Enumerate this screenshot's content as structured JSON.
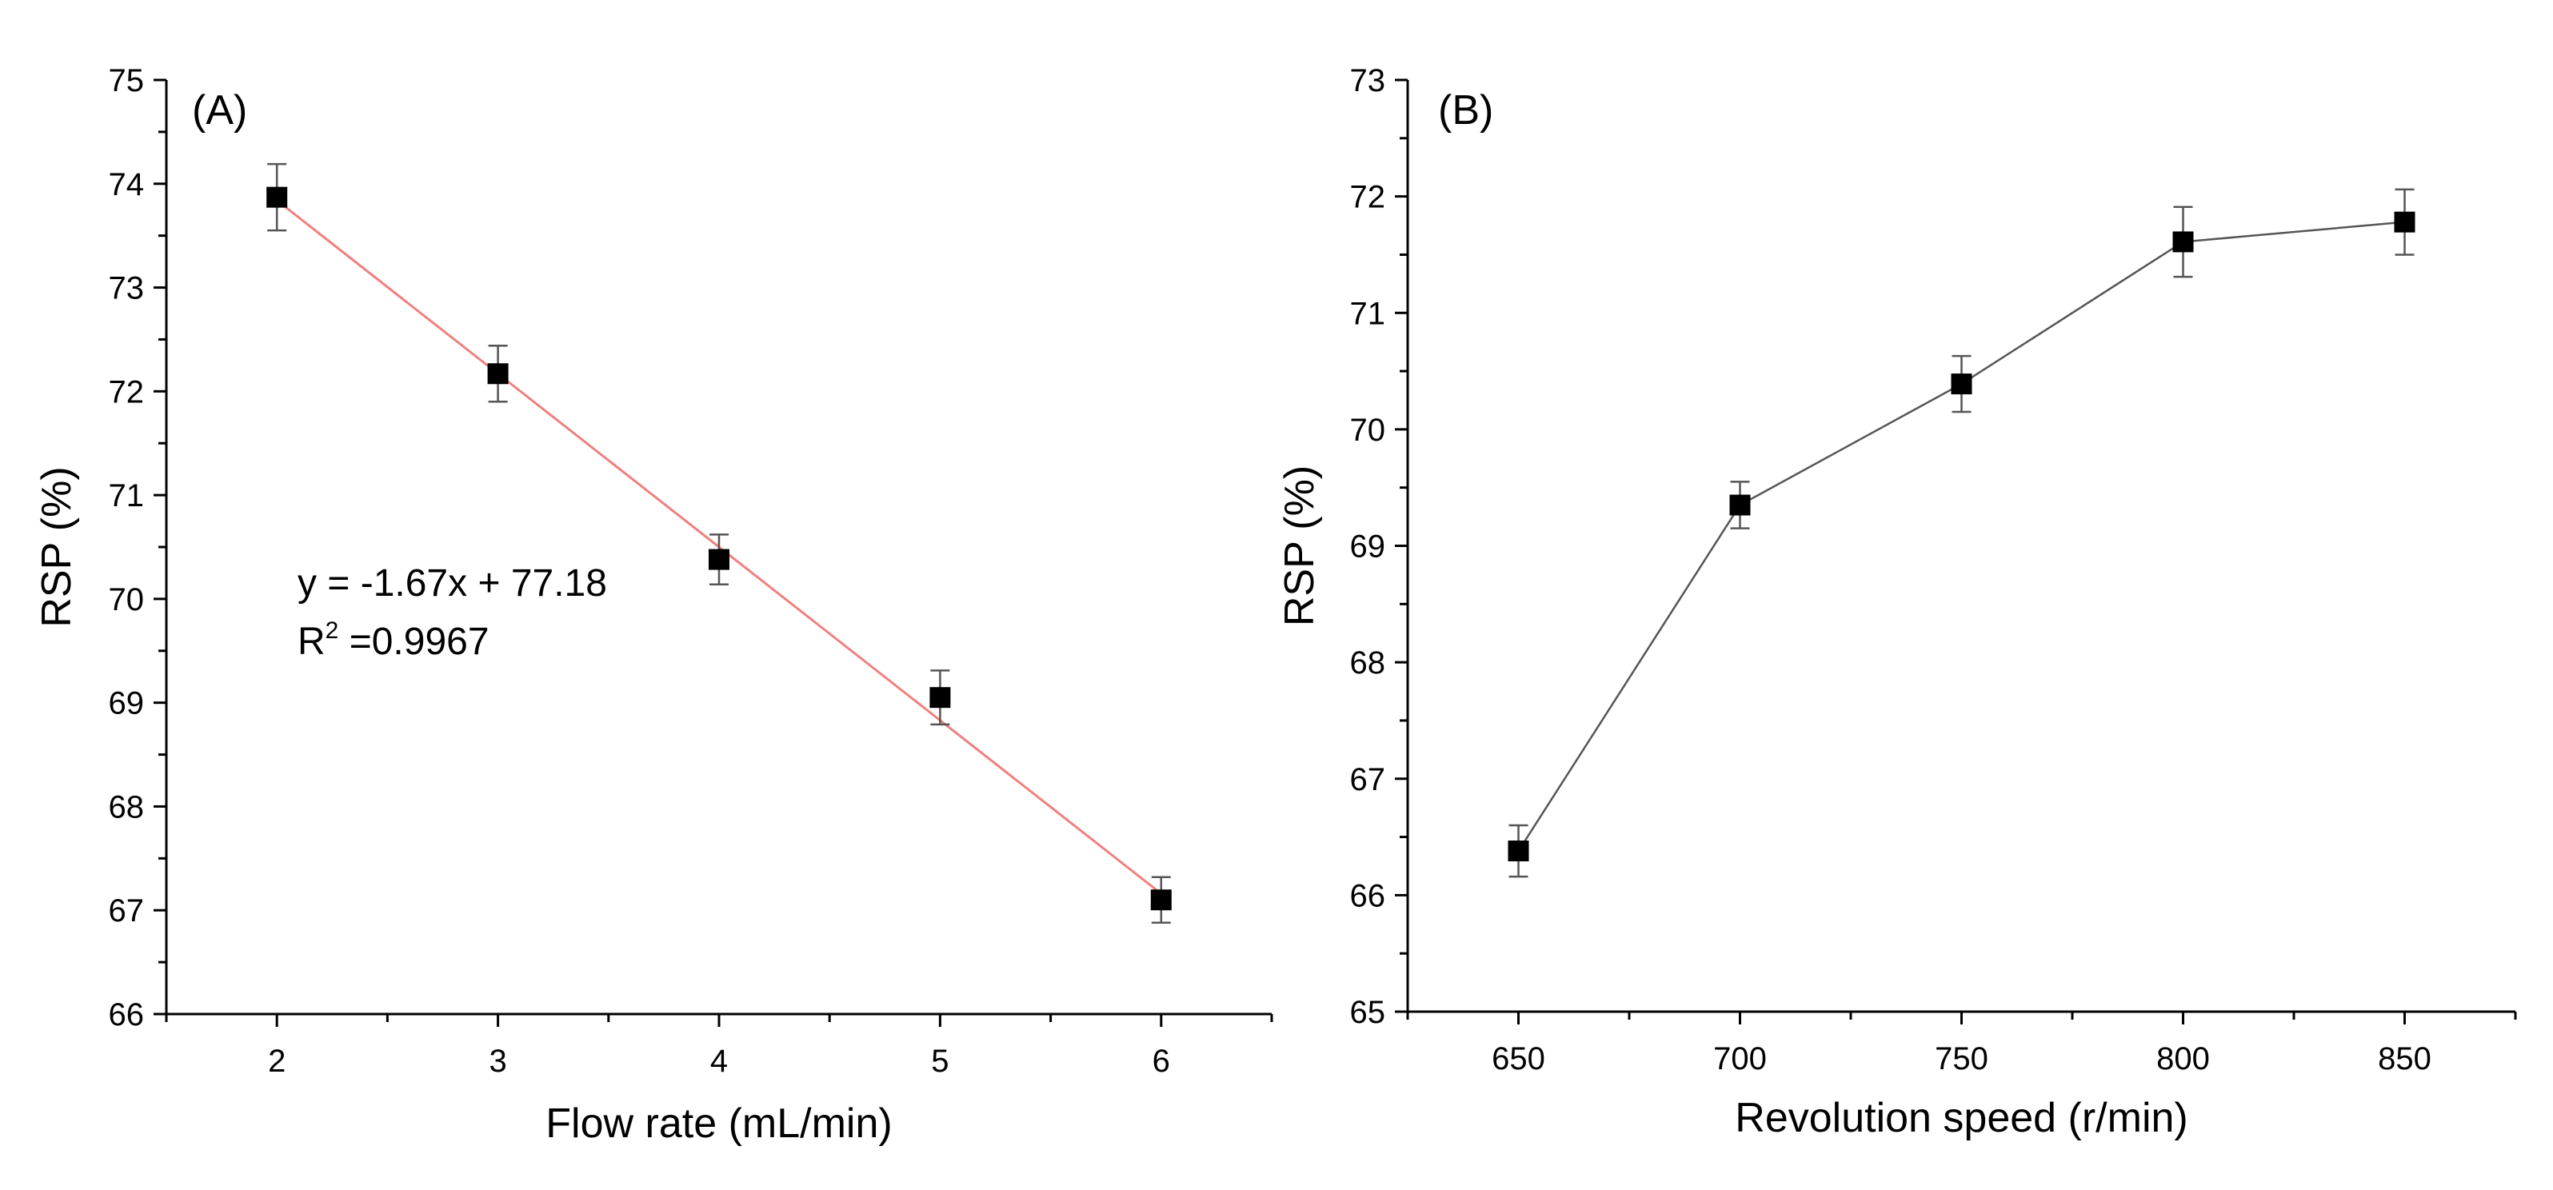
{
  "chart_data": [
    {
      "type": "scatter",
      "panel_label": "(A)",
      "xlabel": "Flow rate (mL/min)",
      "ylabel": "RSP (%)",
      "xlim": [
        1.5,
        6.5
      ],
      "ylim": [
        66,
        75
      ],
      "xticks": [
        2,
        3,
        4,
        5,
        6
      ],
      "yticks": [
        66,
        67,
        68,
        69,
        70,
        71,
        72,
        73,
        74,
        75
      ],
      "series": [
        {
          "name": "RSP",
          "x": [
            2,
            3,
            4,
            5,
            6
          ],
          "y": [
            73.87,
            72.17,
            70.38,
            69.05,
            67.1
          ],
          "error": [
            0.32,
            0.27,
            0.24,
            0.26,
            0.22
          ],
          "marker_color": "#000000"
        }
      ],
      "fit": {
        "slope": -1.67,
        "intercept": 77.18,
        "x_range": [
          2,
          6
        ],
        "color": "#f08080",
        "equation": "y = -1.67x + 77.18",
        "r2_prefix": "R",
        "r2_sup": "2",
        "r2_value": " =0.9967"
      }
    },
    {
      "type": "line",
      "panel_label": "(B)",
      "xlabel": "Revolution speed (r/min)",
      "ylabel": "RSP (%)",
      "xlim": [
        625,
        875
      ],
      "ylim": [
        65,
        73
      ],
      "xticks": [
        650,
        700,
        750,
        800,
        850
      ],
      "yticks": [
        65,
        66,
        67,
        68,
        69,
        70,
        71,
        72,
        73
      ],
      "series": [
        {
          "name": "RSP",
          "x": [
            650,
            700,
            750,
            800,
            850
          ],
          "y": [
            66.38,
            69.35,
            70.39,
            71.61,
            71.78
          ],
          "error": [
            0.22,
            0.2,
            0.24,
            0.3,
            0.28
          ],
          "marker_color": "#000000",
          "line_color": "#555555"
        }
      ]
    }
  ]
}
